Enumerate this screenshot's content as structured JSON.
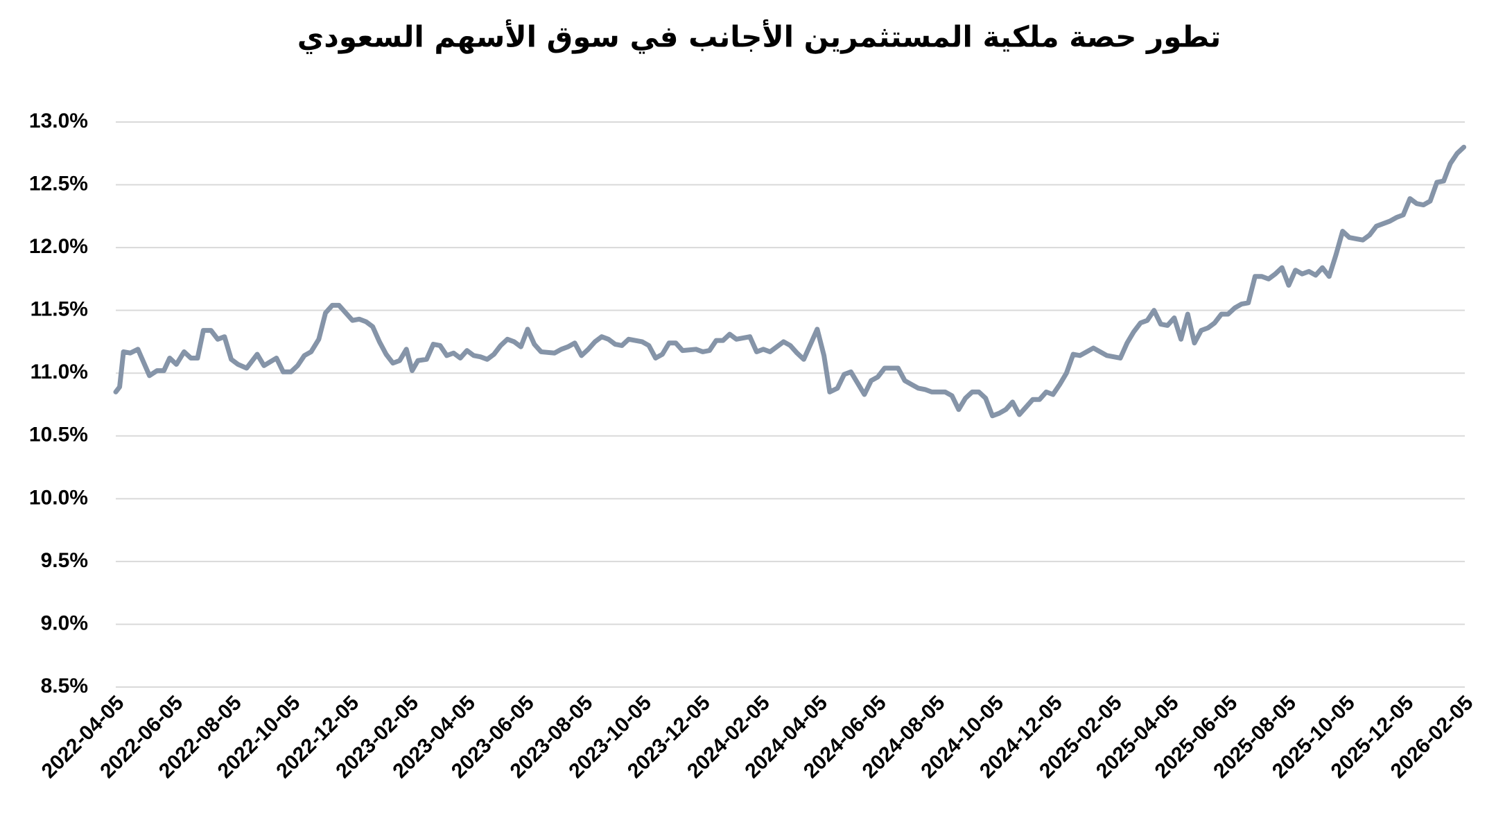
{
  "chart_data": {
    "type": "line",
    "title": "تطور حصة ملكية المستثمرين الأجانب في سوق الأسهم السعودي",
    "x": [
      "2022-04-05",
      "2022-04-09",
      "2022-04-13",
      "2022-04-20",
      "2022-04-28",
      "2022-05-10",
      "2022-05-18",
      "2022-05-25",
      "2022-05-31",
      "2022-06-07",
      "2022-06-15",
      "2022-06-22",
      "2022-06-29",
      "2022-07-05",
      "2022-07-13",
      "2022-07-20",
      "2022-07-27",
      "2022-08-03",
      "2022-08-10",
      "2022-08-19",
      "2022-08-30",
      "2022-09-06",
      "2022-09-19",
      "2022-09-26",
      "2022-10-04",
      "2022-10-11",
      "2022-10-18",
      "2022-10-25",
      "2022-11-02",
      "2022-11-09",
      "2022-11-16",
      "2022-11-23",
      "2022-11-30",
      "2022-12-07",
      "2022-12-14",
      "2022-12-21",
      "2022-12-28",
      "2023-01-04",
      "2023-01-11",
      "2023-01-18",
      "2023-01-25",
      "2023-02-01",
      "2023-02-07",
      "2023-02-13",
      "2023-02-22",
      "2023-03-01",
      "2023-03-08",
      "2023-03-15",
      "2023-03-22",
      "2023-03-29",
      "2023-04-05",
      "2023-04-12",
      "2023-04-19",
      "2023-04-26",
      "2023-05-03",
      "2023-05-10",
      "2023-05-17",
      "2023-05-24",
      "2023-05-31",
      "2023-06-07",
      "2023-06-14",
      "2023-06-21",
      "2023-07-05",
      "2023-07-12",
      "2023-07-19",
      "2023-07-26",
      "2023-08-02",
      "2023-08-09",
      "2023-08-16",
      "2023-08-23",
      "2023-08-30",
      "2023-09-06",
      "2023-09-13",
      "2023-09-20",
      "2023-10-04",
      "2023-10-11",
      "2023-10-18",
      "2023-10-25",
      "2023-11-01",
      "2023-11-08",
      "2023-11-15",
      "2023-11-29",
      "2023-12-06",
      "2023-12-13",
      "2023-12-20",
      "2023-12-27",
      "2024-01-03",
      "2024-01-10",
      "2024-01-24",
      "2024-01-31",
      "2024-02-07",
      "2024-02-14",
      "2024-02-21",
      "2024-02-28",
      "2024-03-06",
      "2024-03-13",
      "2024-03-20",
      "2024-03-27",
      "2024-04-03",
      "2024-04-10",
      "2024-04-16",
      "2024-04-24",
      "2024-05-01",
      "2024-05-08",
      "2024-05-15",
      "2024-05-22",
      "2024-05-29",
      "2024-06-05",
      "2024-06-12",
      "2024-06-26",
      "2024-07-03",
      "2024-07-10",
      "2024-07-17",
      "2024-07-24",
      "2024-07-31",
      "2024-08-14",
      "2024-08-21",
      "2024-08-28",
      "2024-09-04",
      "2024-09-11",
      "2024-09-18",
      "2024-09-25",
      "2024-10-02",
      "2024-10-09",
      "2024-10-16",
      "2024-10-23",
      "2024-10-30",
      "2024-11-06",
      "2024-11-13",
      "2024-11-20",
      "2024-11-27",
      "2024-12-04",
      "2024-12-11",
      "2024-12-18",
      "2024-12-25",
      "2025-01-01",
      "2025-01-08",
      "2025-01-15",
      "2025-01-22",
      "2025-01-29",
      "2025-02-12",
      "2025-02-19",
      "2025-02-26",
      "2025-03-05",
      "2025-03-12",
      "2025-03-19",
      "2025-03-26",
      "2025-04-02",
      "2025-04-09",
      "2025-04-16",
      "2025-04-23",
      "2025-04-30",
      "2025-05-07",
      "2025-05-14",
      "2025-05-21",
      "2025-05-28",
      "2025-06-04",
      "2025-06-11",
      "2025-06-18",
      "2025-06-25",
      "2025-07-02",
      "2025-07-09",
      "2025-07-16",
      "2025-07-23",
      "2025-07-30",
      "2025-08-06",
      "2025-08-13",
      "2025-08-20",
      "2025-08-27",
      "2025-09-03",
      "2025-09-10",
      "2025-09-17",
      "2025-09-24",
      "2025-10-01",
      "2025-10-08",
      "2025-10-15",
      "2025-10-22",
      "2025-10-29",
      "2025-11-05",
      "2025-11-12",
      "2025-11-19",
      "2025-11-26",
      "2025-12-03",
      "2025-12-10",
      "2025-12-17",
      "2025-12-24",
      "2025-12-31",
      "2026-01-07",
      "2026-01-14",
      "2026-01-21",
      "2026-01-28",
      "2026-02-04"
    ],
    "series": [
      {
        "name": "حصة ملكية المستثمرين الأجانب",
        "color": "#8594a8",
        "values": [
          10.85,
          10.89,
          11.17,
          11.16,
          11.19,
          10.98,
          11.02,
          11.02,
          11.12,
          11.07,
          11.17,
          11.12,
          11.12,
          11.34,
          11.34,
          11.27,
          11.29,
          11.11,
          11.07,
          11.04,
          11.15,
          11.06,
          11.12,
          11.01,
          11.01,
          11.06,
          11.14,
          11.17,
          11.27,
          11.48,
          11.54,
          11.54,
          11.48,
          11.42,
          11.43,
          11.41,
          11.37,
          11.25,
          11.15,
          11.08,
          11.1,
          11.19,
          11.02,
          11.1,
          11.11,
          11.23,
          11.22,
          11.14,
          11.16,
          11.12,
          11.18,
          11.14,
          11.13,
          11.11,
          11.15,
          11.22,
          11.27,
          11.25,
          11.21,
          11.35,
          11.23,
          11.17,
          11.16,
          11.19,
          11.21,
          11.24,
          11.14,
          11.19,
          11.25,
          11.29,
          11.27,
          11.23,
          11.22,
          11.27,
          11.25,
          11.22,
          11.12,
          11.15,
          11.24,
          11.24,
          11.18,
          11.19,
          11.17,
          11.18,
          11.26,
          11.26,
          11.31,
          11.27,
          11.29,
          11.17,
          11.19,
          11.17,
          11.21,
          11.25,
          11.22,
          11.16,
          11.11,
          11.23,
          11.35,
          11.14,
          10.85,
          10.88,
          10.99,
          11.01,
          10.92,
          10.83,
          10.94,
          10.97,
          11.04,
          11.04,
          10.94,
          10.91,
          10.88,
          10.87,
          10.85,
          10.85,
          10.82,
          10.71,
          10.8,
          10.85,
          10.85,
          10.8,
          10.66,
          10.68,
          10.71,
          10.77,
          10.67,
          10.73,
          10.79,
          10.79,
          10.85,
          10.83,
          10.91,
          11.0,
          11.15,
          11.14,
          11.17,
          11.2,
          11.17,
          11.14,
          11.12,
          11.24,
          11.33,
          11.4,
          11.42,
          11.5,
          11.39,
          11.38,
          11.44,
          11.27,
          11.47,
          11.24,
          11.34,
          11.36,
          11.4,
          11.47,
          11.47,
          11.52,
          11.55,
          11.56,
          11.77,
          11.77,
          11.75,
          11.79,
          11.84,
          11.7,
          11.82,
          11.79,
          11.81,
          11.78,
          11.84,
          11.77,
          11.94,
          12.13,
          12.08,
          12.07,
          12.06,
          12.1,
          12.17,
          12.19,
          12.21,
          12.24,
          12.26,
          12.39,
          12.35,
          12.34,
          12.37,
          12.52,
          12.53,
          12.67,
          12.75,
          12.8
        ]
      }
    ],
    "xlim": [
      "2022-04-05",
      "2026-02-05"
    ],
    "xticks": [
      "2022-04-05",
      "2022-06-05",
      "2022-08-05",
      "2022-10-05",
      "2022-12-05",
      "2023-02-05",
      "2023-04-05",
      "2023-06-05",
      "2023-08-05",
      "2023-10-05",
      "2023-12-05",
      "2024-02-05",
      "2024-04-05",
      "2024-06-05",
      "2024-08-05",
      "2024-10-05",
      "2024-12-05",
      "2025-02-05",
      "2025-04-05",
      "2025-06-05",
      "2025-08-05",
      "2025-10-05",
      "2025-12-05",
      "2026-02-05"
    ],
    "ylim": [
      8.5,
      13
    ],
    "yticks": [
      {
        "value": 8.5,
        "label": "8.5%"
      },
      {
        "value": 9,
        "label": "9.0%"
      },
      {
        "value": 9.5,
        "label": "9.5%"
      },
      {
        "value": 10,
        "label": "10.0%"
      },
      {
        "value": 10.5,
        "label": "10.5%"
      },
      {
        "value": 11,
        "label": "11.0%"
      },
      {
        "value": 11.5,
        "label": "11.5%"
      },
      {
        "value": 12,
        "label": "12.0%"
      },
      {
        "value": 12.5,
        "label": "12.5%"
      },
      {
        "value": 13,
        "label": "13.0%"
      }
    ],
    "grid": true
  }
}
